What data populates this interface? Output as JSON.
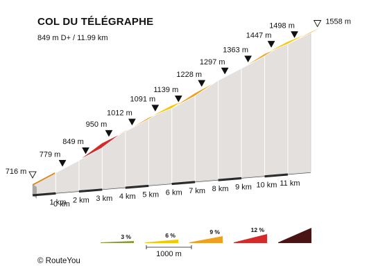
{
  "header": {
    "title": "COL DU TÉLÉGRAPHE",
    "stats": "849 m D+ / 11.99 km"
  },
  "credit": "© RouteYou",
  "chart_data": {
    "type": "area",
    "title": "COL DU TÉLÉGRAPHE",
    "subtitle": "849 m D+ / 11.99 km",
    "x_km": [
      0,
      1,
      2,
      3,
      4,
      5,
      6,
      7,
      8,
      9,
      10,
      11,
      11.99
    ],
    "x_tick_labels": [
      "0 km",
      "1 km",
      "2 km",
      "3 km",
      "4 km",
      "5 km",
      "6 km",
      "7 km",
      "8 km",
      "9 km",
      "10 km",
      "11 km"
    ],
    "elevation_m": [
      716,
      779,
      849,
      950,
      1012,
      1091,
      1139,
      1228,
      1297,
      1363,
      1447,
      1498,
      1558
    ],
    "elevation_labels": [
      "716 m",
      "779 m",
      "849 m",
      "950 m",
      "1012 m",
      "1091 m",
      "1139 m",
      "1228 m",
      "1297 m",
      "1363 m",
      "1447 m",
      "1498 m",
      "1558 m"
    ],
    "segment_gradient_pct": [
      6.3,
      7.0,
      10.1,
      6.2,
      7.9,
      4.8,
      8.9,
      6.9,
      6.6,
      8.4,
      5.1,
      6.1
    ],
    "legend": {
      "unit_label": "1000 m",
      "items": [
        {
          "label": "3 %",
          "color": "#8c9a3c"
        },
        {
          "label": "6 %",
          "color": "#f5c800"
        },
        {
          "label": "9 %",
          "color": "#f0a01e"
        },
        {
          "label": "12 %",
          "color": "#d42a2a"
        },
        {
          "label": "",
          "color": "#4a1414"
        }
      ]
    },
    "colors": {
      "gradient_6_9": "#f0a01e",
      "gradient_3_6": "#f5c800",
      "gradient_9_12": "#d42a2a",
      "wall": "#e4e0de",
      "base": "#a8a8a8"
    }
  }
}
